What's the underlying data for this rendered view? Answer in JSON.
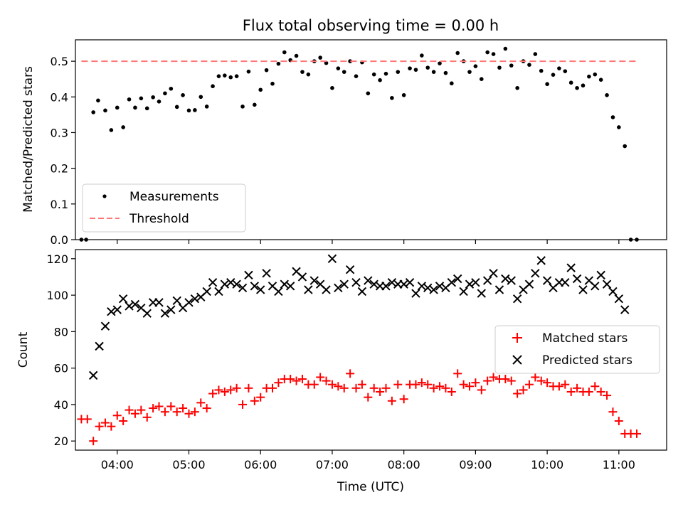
{
  "chart_data": [
    {
      "type": "scatter",
      "title": "Flux total observing time = 0.00 h",
      "ylabel": "Matched/Predicted stars",
      "ylim": [
        0,
        0.56
      ],
      "xlim": [
        "03:25",
        "11:40"
      ],
      "yticks": [
        "0.0",
        "0.1",
        "0.2",
        "0.3",
        "0.4",
        "0.5"
      ],
      "legend": {
        "position": "lower-left",
        "entries": [
          "Measurements",
          "Threshold"
        ]
      },
      "threshold": 0.5,
      "series": [
        {
          "name": "Measurements",
          "color": "#000000",
          "marker": "dot",
          "x": [
            "03:30",
            "03:34",
            "03:40",
            "03:44",
            "03:50",
            "03:55",
            "04:00",
            "04:05",
            "04:10",
            "04:15",
            "04:20",
            "04:25",
            "04:30",
            "04:35",
            "04:40",
            "04:45",
            "04:50",
            "04:55",
            "05:00",
            "05:05",
            "05:10",
            "05:15",
            "05:20",
            "05:25",
            "05:30",
            "05:35",
            "05:40",
            "05:45",
            "05:50",
            "05:55",
            "06:00",
            "06:05",
            "06:10",
            "06:15",
            "06:20",
            "06:25",
            "06:30",
            "06:35",
            "06:40",
            "06:45",
            "06:50",
            "06:55",
            "07:00",
            "07:05",
            "07:10",
            "07:15",
            "07:20",
            "07:25",
            "07:30",
            "07:35",
            "07:40",
            "07:45",
            "07:50",
            "07:55",
            "08:00",
            "08:05",
            "08:10",
            "08:15",
            "08:20",
            "08:25",
            "08:30",
            "08:35",
            "08:40",
            "08:45",
            "08:50",
            "08:55",
            "09:00",
            "09:05",
            "09:10",
            "09:15",
            "09:20",
            "09:25",
            "09:30",
            "09:35",
            "09:40",
            "09:45",
            "09:50",
            "09:55",
            "10:00",
            "10:05",
            "10:10",
            "10:15",
            "10:20",
            "10:25",
            "10:30",
            "10:35",
            "10:40",
            "10:45",
            "10:50",
            "10:55",
            "11:00",
            "11:05",
            "11:10",
            "11:15"
          ],
          "y": [
            0.0,
            0.0,
            0.357,
            0.39,
            0.362,
            0.307,
            0.37,
            0.315,
            0.393,
            0.37,
            0.396,
            0.368,
            0.399,
            0.387,
            0.41,
            0.423,
            0.372,
            0.405,
            0.362,
            0.363,
            0.4,
            0.373,
            0.43,
            0.458,
            0.46,
            0.455,
            0.458,
            0.373,
            0.471,
            0.378,
            0.42,
            0.475,
            0.437,
            0.493,
            0.525,
            0.503,
            0.515,
            0.47,
            0.463,
            0.5,
            0.51,
            0.495,
            0.425,
            0.48,
            0.47,
            0.5,
            0.458,
            0.497,
            0.41,
            0.463,
            0.447,
            0.465,
            0.397,
            0.47,
            0.405,
            0.48,
            0.476,
            0.516,
            0.482,
            0.47,
            0.494,
            0.467,
            0.438,
            0.523,
            0.5,
            0.47,
            0.486,
            0.45,
            0.525,
            0.52,
            0.482,
            0.535,
            0.488,
            0.425,
            0.5,
            0.49,
            0.52,
            0.473,
            0.436,
            0.462,
            0.48,
            0.472,
            0.44,
            0.425,
            0.432,
            0.457,
            0.463,
            0.448,
            0.405,
            0.343,
            0.315,
            0.262,
            0.0,
            0.0
          ]
        },
        {
          "name": "Threshold",
          "color": "#ff7777",
          "line": "dashed",
          "x": [
            "03:30",
            "11:15"
          ],
          "y": [
            0.5,
            0.5
          ]
        }
      ]
    },
    {
      "type": "scatter",
      "ylabel": "Count",
      "xlabel": "Time (UTC)",
      "ylim": [
        15,
        125
      ],
      "xlim": [
        "03:25",
        "11:40"
      ],
      "yticks": [
        "20",
        "40",
        "60",
        "80",
        "100",
        "120"
      ],
      "xticks": [
        "04:00",
        "05:00",
        "06:00",
        "07:00",
        "08:00",
        "09:00",
        "10:00",
        "11:00"
      ],
      "legend": {
        "position": "center-right",
        "entries": [
          "Matched stars",
          "Predicted stars"
        ]
      },
      "series": [
        {
          "name": "Matched stars",
          "color": "#ff0000",
          "marker": "plus",
          "x": [
            "03:30",
            "03:35",
            "03:40",
            "03:45",
            "03:50",
            "03:55",
            "04:00",
            "04:05",
            "04:10",
            "04:15",
            "04:20",
            "04:25",
            "04:30",
            "04:35",
            "04:40",
            "04:45",
            "04:50",
            "04:55",
            "05:00",
            "05:05",
            "05:10",
            "05:15",
            "05:20",
            "05:25",
            "05:30",
            "05:35",
            "05:40",
            "05:45",
            "05:50",
            "05:55",
            "06:00",
            "06:05",
            "06:10",
            "06:15",
            "06:20",
            "06:25",
            "06:30",
            "06:35",
            "06:40",
            "06:45",
            "06:50",
            "06:55",
            "07:00",
            "07:05",
            "07:10",
            "07:15",
            "07:20",
            "07:25",
            "07:30",
            "07:35",
            "07:40",
            "07:45",
            "07:50",
            "07:55",
            "08:00",
            "08:05",
            "08:10",
            "08:15",
            "08:20",
            "08:25",
            "08:30",
            "08:35",
            "08:40",
            "08:45",
            "08:50",
            "08:55",
            "09:00",
            "09:05",
            "09:10",
            "09:15",
            "09:20",
            "09:25",
            "09:30",
            "09:35",
            "09:40",
            "09:45",
            "09:50",
            "09:55",
            "10:00",
            "10:05",
            "10:10",
            "10:15",
            "10:20",
            "10:25",
            "10:30",
            "10:35",
            "10:40",
            "10:45",
            "10:50",
            "10:55",
            "11:00",
            "11:05",
            "11:10",
            "11:15"
          ],
          "y": [
            32,
            32,
            20,
            28,
            30,
            28,
            34,
            31,
            37,
            35,
            37,
            33,
            38,
            39,
            36,
            39,
            36,
            38,
            35,
            36,
            41,
            38,
            46,
            48,
            47,
            48,
            49,
            40,
            49,
            42,
            44,
            49,
            49,
            52,
            54,
            54,
            53,
            54,
            51,
            51,
            55,
            53,
            51,
            50,
            49,
            57,
            49,
            51,
            44,
            49,
            47,
            49,
            42,
            51,
            43,
            51,
            51,
            52,
            51,
            49,
            50,
            49,
            47,
            57,
            51,
            50,
            52,
            48,
            53,
            55,
            54,
            54,
            53,
            46,
            48,
            51,
            55,
            53,
            52,
            50,
            50,
            51,
            47,
            49,
            47,
            47,
            50,
            47,
            45,
            36,
            31,
            24,
            24,
            24
          ]
        },
        {
          "name": "Predicted stars",
          "color": "#000000",
          "marker": "x",
          "x": [
            "03:40",
            "03:45",
            "03:50",
            "03:55",
            "04:00",
            "04:05",
            "04:10",
            "04:15",
            "04:20",
            "04:25",
            "04:30",
            "04:35",
            "04:40",
            "04:45",
            "04:50",
            "04:55",
            "05:00",
            "05:05",
            "05:10",
            "05:15",
            "05:20",
            "05:25",
            "05:30",
            "05:35",
            "05:40",
            "05:45",
            "05:50",
            "05:55",
            "06:00",
            "06:05",
            "06:10",
            "06:15",
            "06:20",
            "06:25",
            "06:30",
            "06:35",
            "06:40",
            "06:45",
            "06:50",
            "06:55",
            "07:00",
            "07:05",
            "07:10",
            "07:15",
            "07:20",
            "07:25",
            "07:30",
            "07:35",
            "07:40",
            "07:45",
            "07:50",
            "07:55",
            "08:00",
            "08:05",
            "08:10",
            "08:15",
            "08:20",
            "08:25",
            "08:30",
            "08:35",
            "08:40",
            "08:45",
            "08:50",
            "08:55",
            "09:00",
            "09:05",
            "09:10",
            "09:15",
            "09:20",
            "09:25",
            "09:30",
            "09:35",
            "09:40",
            "09:45",
            "09:50",
            "09:55",
            "10:00",
            "10:05",
            "10:10",
            "10:15",
            "10:20",
            "10:25",
            "10:30",
            "10:35",
            "10:40",
            "10:45",
            "10:50",
            "10:55",
            "11:00",
            "11:05"
          ],
          "y": [
            56,
            72,
            83,
            91,
            92,
            98,
            94,
            95,
            93,
            90,
            96,
            96,
            90,
            92,
            97,
            93,
            96,
            98,
            99,
            102,
            107,
            102,
            106,
            107,
            106,
            104,
            111,
            105,
            103,
            112,
            105,
            102,
            106,
            105,
            113,
            110,
            103,
            108,
            106,
            103,
            120,
            104,
            106,
            114,
            107,
            102,
            108,
            106,
            105,
            105,
            107,
            106,
            106,
            107,
            101,
            105,
            104,
            103,
            105,
            104,
            107,
            109,
            102,
            106,
            107,
            101,
            108,
            112,
            103,
            109,
            108,
            98,
            103,
            106,
            112,
            119,
            108,
            104,
            107,
            107,
            115,
            109,
            103,
            108,
            105,
            111,
            106,
            102,
            98,
            92
          ]
        }
      ]
    }
  ]
}
